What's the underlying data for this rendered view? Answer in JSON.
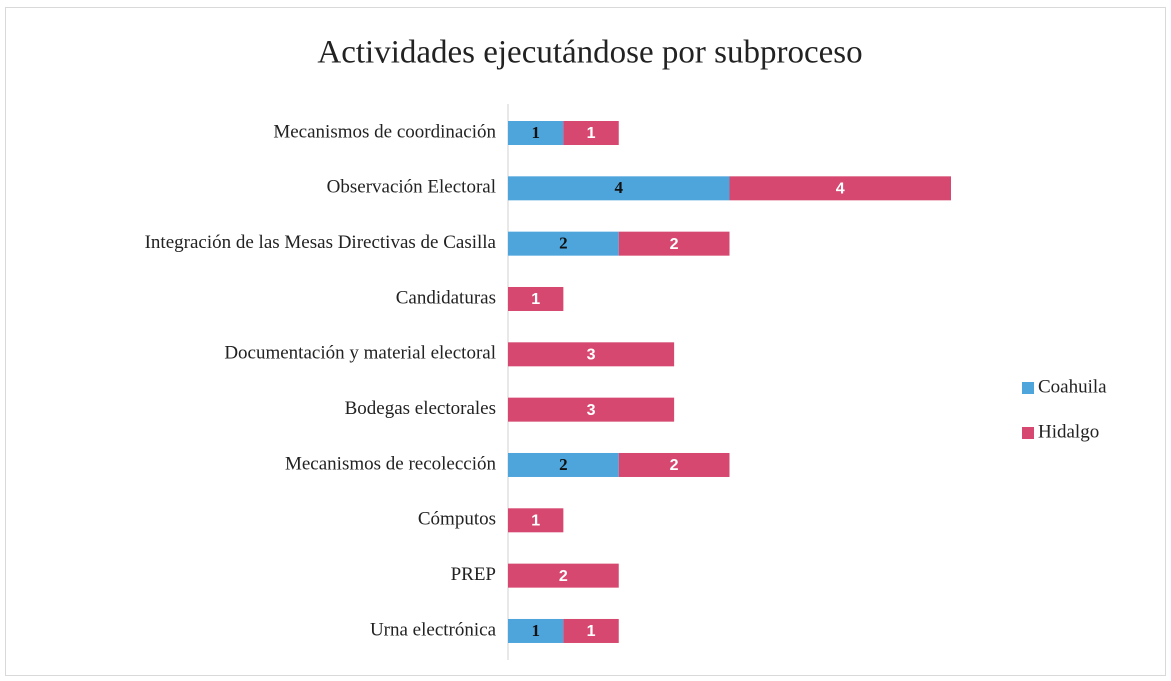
{
  "chart_data": {
    "type": "stacked_bar_horizontal",
    "title": "Actividades ejecutándose por subproceso",
    "categories": [
      "Mecanismos de coordinación",
      "Observación Electoral",
      "Integración de las Mesas Directivas de Casilla",
      "Candidaturas",
      "Documentación y material electoral",
      "Bodegas electorales",
      "Mecanismos de recolección",
      "Cómputos",
      "PREP",
      "Urna electrónica"
    ],
    "series": [
      {
        "name": "Coahuila",
        "color": "#4ea5dc",
        "values": [
          1,
          4,
          2,
          null,
          null,
          null,
          2,
          null,
          null,
          1
        ]
      },
      {
        "name": "Hidalgo",
        "color": "#d6486f",
        "values": [
          1,
          4,
          2,
          1,
          3,
          3,
          2,
          1,
          2,
          1
        ]
      }
    ],
    "xlim": [
      0,
      8
    ],
    "legend": "right"
  }
}
